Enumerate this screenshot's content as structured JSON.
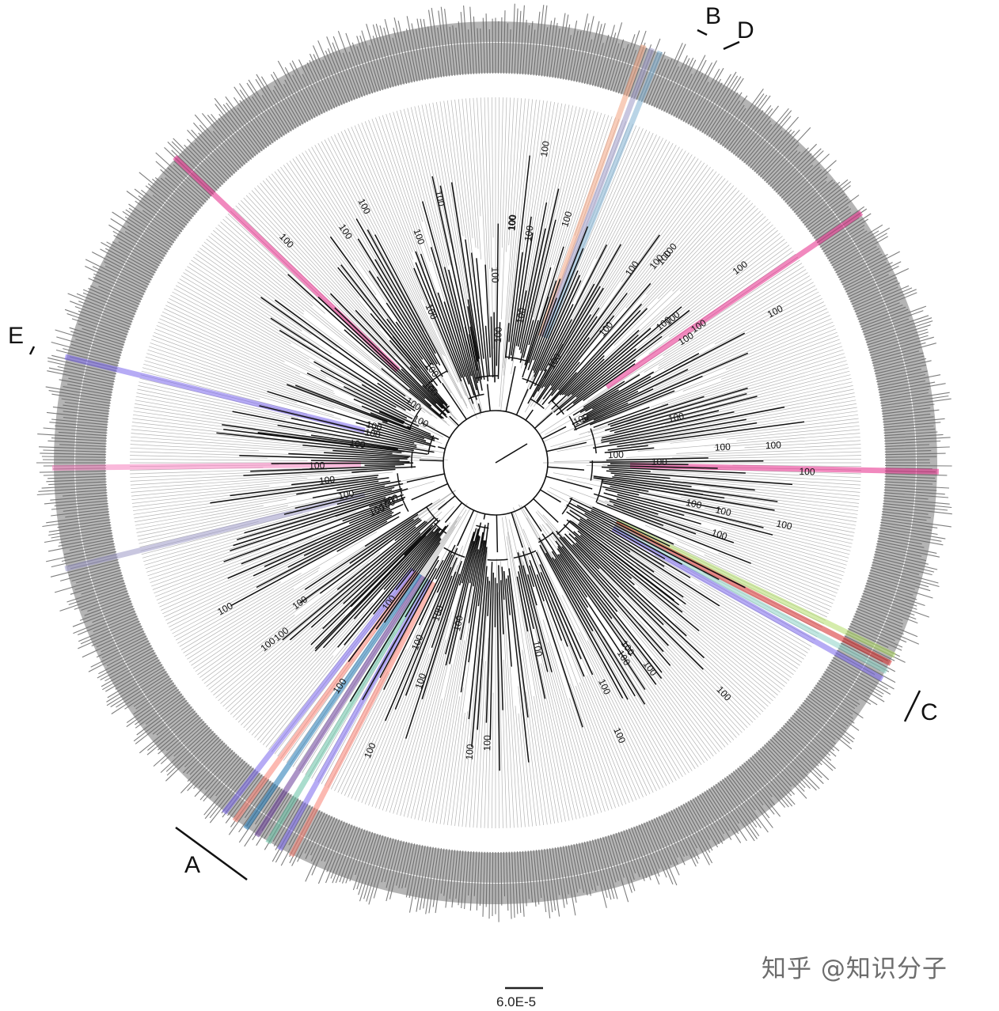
{
  "tree": {
    "clade_labels": [
      {
        "key": "A",
        "text": "A"
      },
      {
        "key": "B",
        "text": "B"
      },
      {
        "key": "C",
        "text": "C"
      },
      {
        "key": "D",
        "text": "D"
      },
      {
        "key": "E",
        "text": "E"
      }
    ],
    "support_value_text": "100",
    "highlight_colors": [
      "#f4a582",
      "#9e9ac8",
      "#e7298a",
      "#fb8072",
      "#7b68ee",
      "#66c2a5",
      "#b3de69",
      "#8dd3c7",
      "#d62728",
      "#6a3d9a",
      "#1f78b4",
      "#80b1d3",
      "#f781bf"
    ]
  },
  "scale_bar": {
    "label": "6.0E-5"
  },
  "watermark": {
    "text": "知乎 @知识分子"
  },
  "colors": {
    "branch": "#111111",
    "ring_dark": "#6e6e6e",
    "ring_light": "#bdbdbd",
    "background": "#ffffff"
  }
}
